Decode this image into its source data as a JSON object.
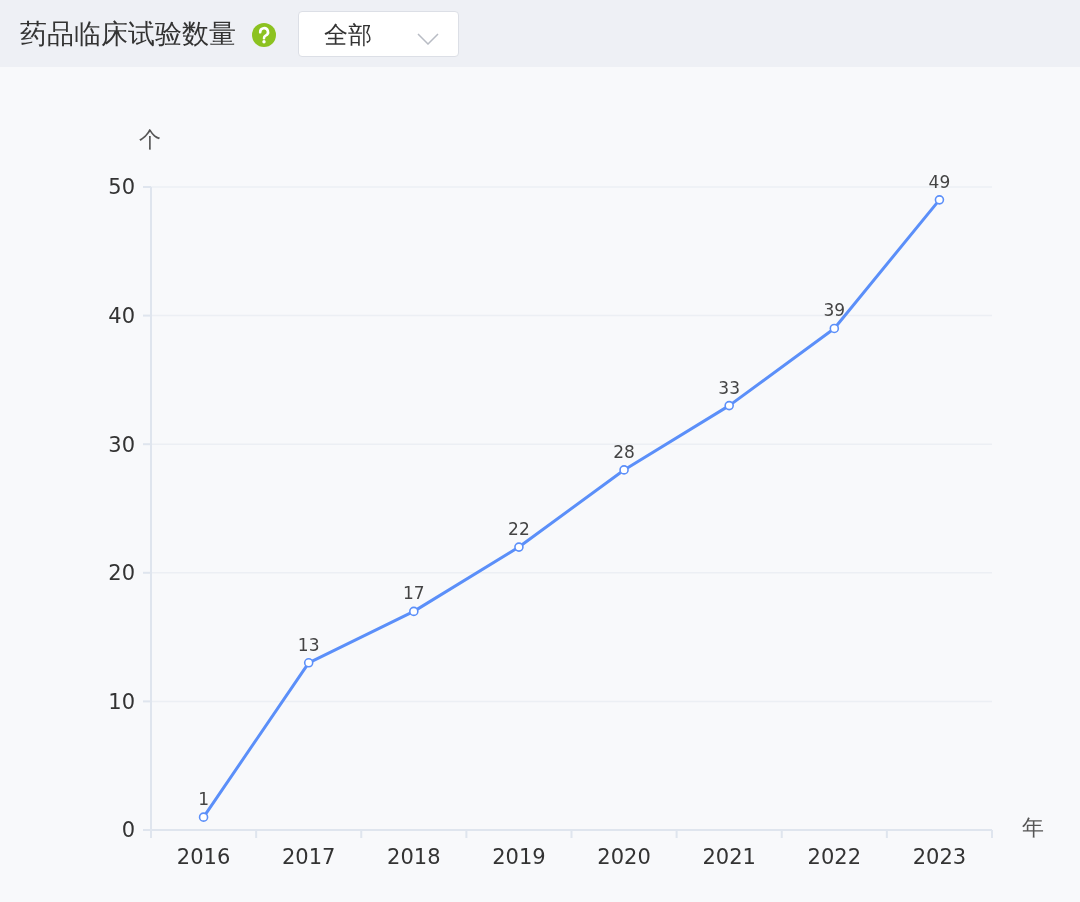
{
  "chart_data": {
    "type": "line",
    "title": "药品临床试验数量",
    "annotations": [
      "全部"
    ],
    "xlabel": "年",
    "ylabel": "个",
    "categories": [
      "2016",
      "2017",
      "2018",
      "2019",
      "2020",
      "2021",
      "2022",
      "2023"
    ],
    "series": [
      {
        "color": "#5b8ff9",
        "values": [
          1,
          13,
          17,
          22,
          28,
          33,
          39,
          49
        ]
      }
    ],
    "ylim": [
      0,
      50
    ],
    "yticks": [
      0,
      10,
      20,
      30,
      40,
      50
    ],
    "grid": "y",
    "marker": "circle",
    "line_style": "solid",
    "data_labels": true
  }
}
